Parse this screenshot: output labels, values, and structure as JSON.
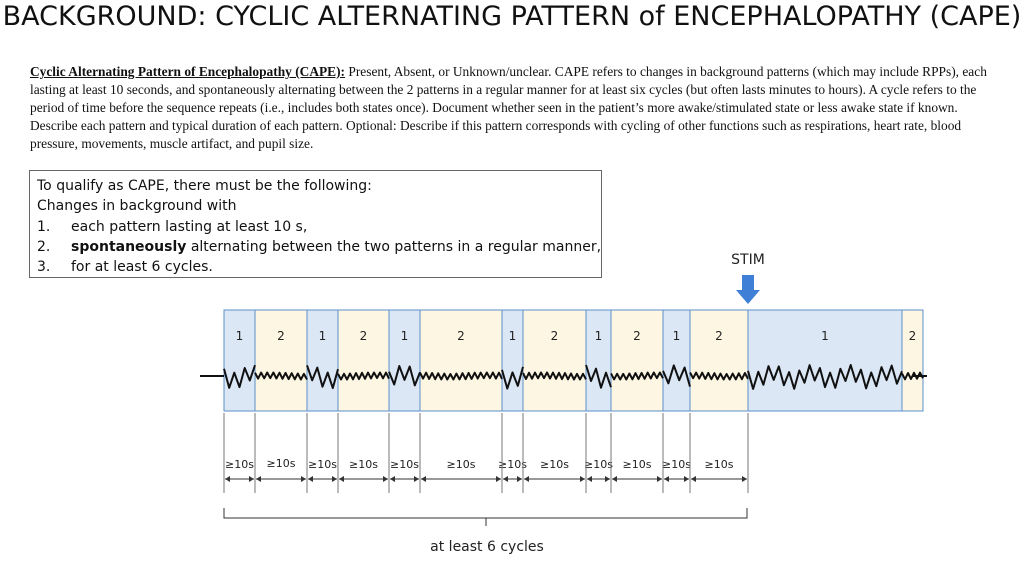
{
  "title": "BACKGROUND: CYCLIC ALTERNATING PATTERN of ENCEPHALOPATHY (CAPE)",
  "description": {
    "lead": "Cyclic Alternating Pattern of Encephalopathy (CAPE):",
    "text": " Present, Absent, or Unknown/unclear. CAPE refers to changes in background patterns (which may include RPPs), each lasting at least 10 seconds, and spontaneously alternating between the 2 patterns in a regular manner for at least six cycles (but often lasts minutes to hours). A cycle refers to the period of time before the sequence repeats (i.e., includes both states once). Document whether seen in the patient’s more awake/stimulated state or less awake state if known. Describe each pattern and typical duration of each pattern. Optional: Describe if this pattern corresponds with cycling of other functions such as respirations, heart rate, blood pressure, movements, muscle artifact, and pupil size."
  },
  "criteria": {
    "intro": "To qualify as CAPE, there must be the following:",
    "subintro": "Changes in background with",
    "items": [
      {
        "num": "1.",
        "bold": "",
        "text": "each pattern lasting at least 10 s,"
      },
      {
        "num": "2.",
        "bold": "spontaneously",
        "text": " alternating between the two patterns in a regular manner,"
      },
      {
        "num": "3.",
        "bold": "",
        "text": "for at least 6 cycles."
      }
    ]
  },
  "diagram": {
    "stim_label": "STIM",
    "pattern_1_color": "#dbe7f5",
    "pattern_2_color": "#fdf6e3",
    "border_color": "#5b8fc9",
    "segments": [
      {
        "label": "1",
        "pattern": 1,
        "duration": "≥10s"
      },
      {
        "label": "2",
        "pattern": 2,
        "duration": "≥10s"
      },
      {
        "label": "1",
        "pattern": 1,
        "duration": "≥10s"
      },
      {
        "label": "2",
        "pattern": 2,
        "duration": "≥10s"
      },
      {
        "label": "1",
        "pattern": 1,
        "duration": "≥10s"
      },
      {
        "label": "2",
        "pattern": 2,
        "duration": "≥10s"
      },
      {
        "label": "1",
        "pattern": 1,
        "duration": "≥10s"
      },
      {
        "label": "2",
        "pattern": 2,
        "duration": "≥10s"
      },
      {
        "label": "1",
        "pattern": 1,
        "duration": "≥10s"
      },
      {
        "label": "2",
        "pattern": 2,
        "duration": "≥10s"
      },
      {
        "label": "1",
        "pattern": 1,
        "duration": "≥10s"
      },
      {
        "label": "2",
        "pattern": 2,
        "duration": "≥10s"
      },
      {
        "label": "1",
        "pattern": 1,
        "duration": ""
      },
      {
        "label": "2",
        "pattern": 2,
        "duration": ""
      }
    ],
    "brace_label": "at least 6 cycles"
  }
}
